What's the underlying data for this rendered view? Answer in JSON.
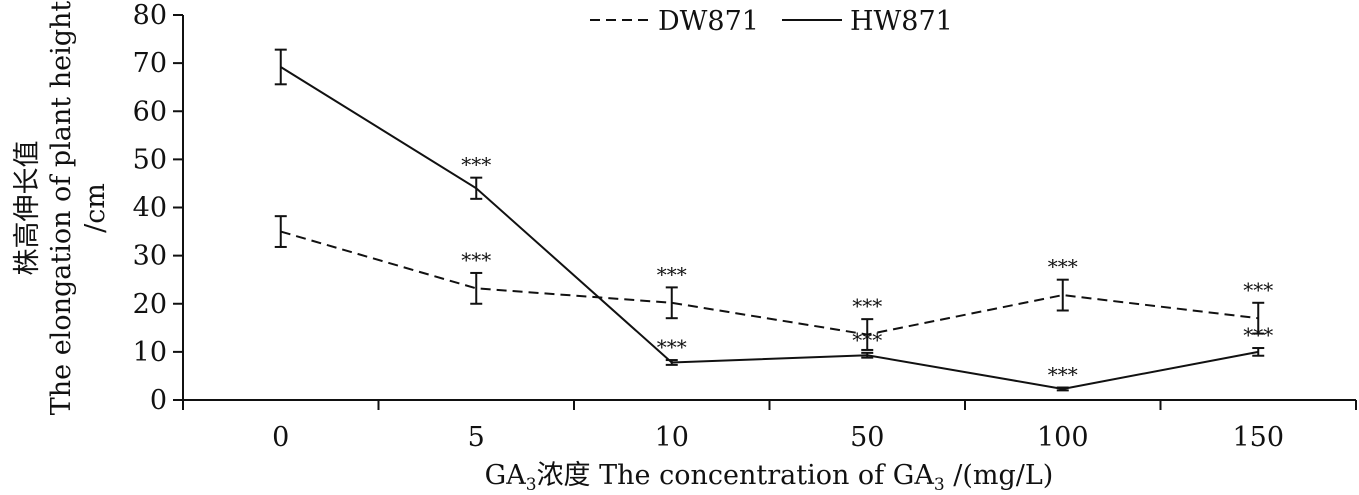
{
  "chart_data": {
    "type": "line",
    "title": "",
    "categories": [
      "0",
      "5",
      "10",
      "50",
      "100",
      "150"
    ],
    "ylim": [
      0,
      80
    ],
    "yticks": [
      0,
      10,
      20,
      30,
      40,
      50,
      60,
      70,
      80
    ],
    "xlabel": {
      "prefix": "GA",
      "prefix_sub": "3",
      "middle": "浓度 The concentration of GA",
      "middle_sub": "3",
      "suffix": " /(mg/L)"
    },
    "ylabel": {
      "line1": "株高伸长值",
      "line2": "The elongation of plant height",
      "line3": "/cm"
    },
    "legend_position": "top-center",
    "grid": false,
    "series": [
      {
        "name": "DW871",
        "style": "dashed",
        "color": "#111111",
        "values": [
          35,
          23.2,
          20.2,
          13.6,
          21.8,
          17
        ],
        "errors": [
          3.2,
          3.2,
          3.2,
          3.2,
          3.2,
          3.2
        ],
        "significance": [
          "",
          "***",
          "***",
          "***",
          "***",
          "***"
        ]
      },
      {
        "name": "HW871",
        "style": "solid",
        "color": "#111111",
        "values": [
          69.2,
          44,
          7.8,
          9.3,
          2.3,
          10
        ],
        "errors": [
          3.6,
          2.2,
          0.5,
          0.5,
          0.3,
          0.8
        ],
        "significance": [
          "",
          "***",
          "***",
          "***",
          "***",
          "***"
        ]
      }
    ]
  }
}
